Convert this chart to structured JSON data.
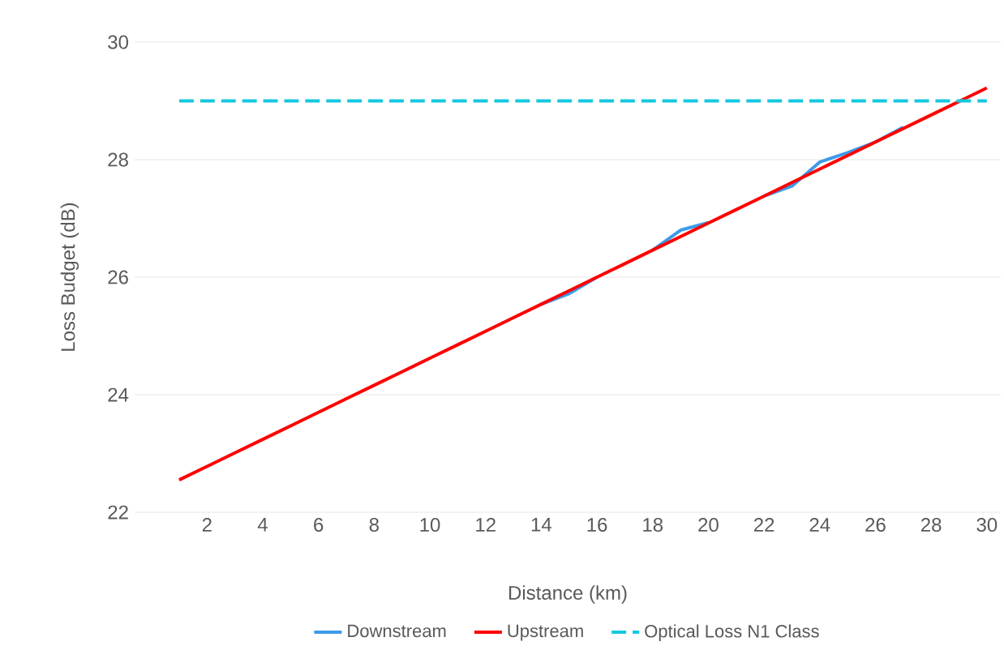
{
  "chart_data": {
    "type": "line",
    "xlabel": "Distance (km)",
    "ylabel": "Loss Budget (dB)",
    "x": [
      1,
      2,
      3,
      4,
      5,
      6,
      7,
      8,
      9,
      10,
      11,
      12,
      13,
      14,
      15,
      16,
      17,
      18,
      19,
      20,
      21,
      22,
      23,
      24,
      25,
      26,
      27,
      28,
      29,
      30
    ],
    "xlim": [
      -0.6,
      30.5
    ],
    "xticks": [
      2,
      4,
      6,
      8,
      10,
      12,
      14,
      16,
      18,
      20,
      22,
      24,
      26,
      28,
      30
    ],
    "ylim": [
      22,
      30
    ],
    "yticks": [
      22,
      24,
      26,
      28,
      30
    ],
    "grid": "y",
    "legend": "bottom",
    "marker": "none",
    "series": [
      {
        "name": "Downstream",
        "color": "#3d9be9",
        "line_style": "solid",
        "values": [
          null,
          null,
          null,
          null,
          null,
          null,
          null,
          null,
          null,
          null,
          null,
          null,
          null,
          25.54,
          25.72,
          26.0,
          null,
          26.46,
          26.8,
          26.93,
          null,
          27.38,
          27.55,
          27.96,
          28.12,
          28.3,
          28.55,
          null,
          null,
          null
        ]
      },
      {
        "name": "Upstream",
        "color": "#ff0000",
        "line_style": "solid",
        "values": [
          22.55,
          22.78,
          23.01,
          23.24,
          23.47,
          23.7,
          23.93,
          24.16,
          24.39,
          24.62,
          24.85,
          25.08,
          25.31,
          25.54,
          25.77,
          26.0,
          26.23,
          26.46,
          26.69,
          26.92,
          27.15,
          27.38,
          27.61,
          27.84,
          28.07,
          28.3,
          28.53,
          28.76,
          28.99,
          29.22
        ]
      },
      {
        "name": "Optical Loss N1 Class",
        "color": "#14c8e0",
        "line_style": "dashed",
        "values": [
          29,
          29,
          29,
          29,
          29,
          29,
          29,
          29,
          29,
          29,
          29,
          29,
          29,
          29,
          29,
          29,
          29,
          29,
          29,
          29,
          29,
          29,
          29,
          29,
          29,
          29,
          29,
          29,
          29,
          29
        ]
      }
    ]
  }
}
